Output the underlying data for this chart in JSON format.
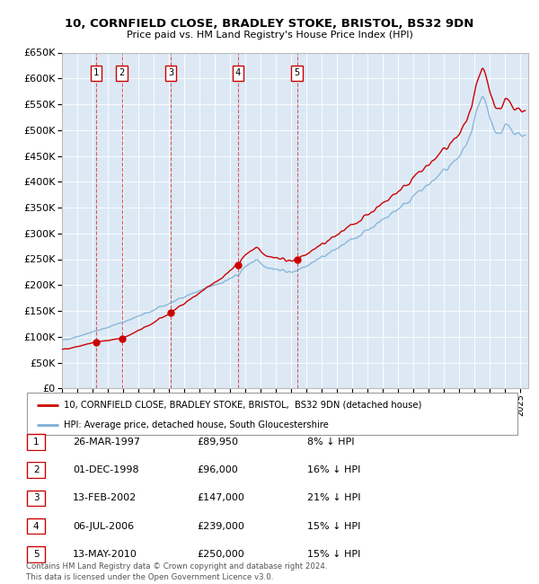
{
  "title": "10, CORNFIELD CLOSE, BRADLEY STOKE, BRISTOL, BS32 9DN",
  "subtitle": "Price paid vs. HM Land Registry's House Price Index (HPI)",
  "bg_color": "#dce9f5",
  "grid_color": "#ffffff",
  "hpi_color": "#7bafd4",
  "price_color": "#cc0000",
  "ylim": [
    0,
    650000
  ],
  "yticks": [
    0,
    50000,
    100000,
    150000,
    200000,
    250000,
    300000,
    350000,
    400000,
    450000,
    500000,
    550000,
    600000,
    650000
  ],
  "ytick_labels": [
    "£0",
    "£50K",
    "£100K",
    "£150K",
    "£200K",
    "£250K",
    "£300K",
    "£350K",
    "£400K",
    "£450K",
    "£500K",
    "£550K",
    "£600K",
    "£650K"
  ],
  "transactions": [
    {
      "num": 1,
      "price": 89950,
      "x": 1997.23
    },
    {
      "num": 2,
      "price": 96000,
      "x": 1998.92
    },
    {
      "num": 3,
      "price": 147000,
      "x": 2002.12
    },
    {
      "num": 4,
      "price": 239000,
      "x": 2006.51
    },
    {
      "num": 5,
      "price": 250000,
      "x": 2010.37
    }
  ],
  "legend_property_label": "10, CORNFIELD CLOSE, BRADLEY STOKE, BRISTOL,  BS32 9DN (detached house)",
  "legend_hpi_label": "HPI: Average price, detached house, South Gloucestershire",
  "table_rows": [
    {
      "num": 1,
      "date": "26-MAR-1997",
      "price": "£89,950",
      "info": "8% ↓ HPI"
    },
    {
      "num": 2,
      "date": "01-DEC-1998",
      "price": "£96,000",
      "info": "16% ↓ HPI"
    },
    {
      "num": 3,
      "date": "13-FEB-2002",
      "price": "£147,000",
      "info": "21% ↓ HPI"
    },
    {
      "num": 4,
      "date": "06-JUL-2006",
      "price": "£239,000",
      "info": "15% ↓ HPI"
    },
    {
      "num": 5,
      "date": "13-MAY-2010",
      "price": "£250,000",
      "info": "15% ↓ HPI"
    }
  ],
  "footer": "Contains HM Land Registry data © Crown copyright and database right 2024.\nThis data is licensed under the Open Government Licence v3.0.",
  "xmin": 1995.0,
  "xmax": 2025.5
}
